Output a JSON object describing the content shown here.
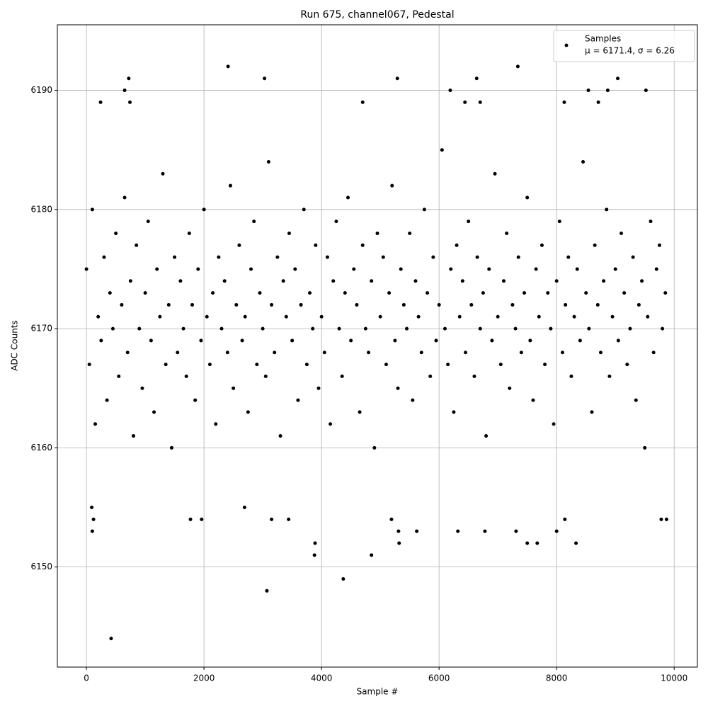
{
  "chart_data": {
    "type": "scatter",
    "title": "Run 675, channel067, Pedestal",
    "xlabel": "Sample #",
    "ylabel": "ADC Counts",
    "xlim": [
      -495,
      10395
    ],
    "ylim": [
      6141.6,
      6195.5
    ],
    "xticks": [
      0,
      2000,
      4000,
      6000,
      8000,
      10000
    ],
    "yticks": [
      6150,
      6160,
      6170,
      6180,
      6190
    ],
    "grid": true,
    "legend": "upper right",
    "series": [
      {
        "name": "Samples",
        "legend_note": "μ = 6171.4, σ = 6.26",
        "color": "#000000",
        "x": [
          0,
          50,
          100,
          150,
          200,
          250,
          300,
          350,
          400,
          450,
          500,
          550,
          600,
          650,
          700,
          750,
          800,
          850,
          900,
          950,
          1000,
          1050,
          1100,
          1150,
          1200,
          1250,
          1300,
          1350,
          1400,
          1450,
          1500,
          1550,
          1600,
          1650,
          1700,
          1750,
          1800,
          1850,
          1900,
          1950,
          2000,
          2050,
          2100,
          2150,
          2200,
          2250,
          2300,
          2350,
          2400,
          2450,
          2500,
          2550,
          2600,
          2650,
          2700,
          2750,
          2800,
          2850,
          2900,
          2950,
          3000,
          3050,
          3100,
          3150,
          3200,
          3250,
          3300,
          3350,
          3400,
          3450,
          3500,
          3550,
          3600,
          3650,
          3700,
          3750,
          3800,
          3850,
          3900,
          3950,
          4000,
          4050,
          4100,
          4150,
          4200,
          4250,
          4300,
          4350,
          4400,
          4450,
          4500,
          4550,
          4600,
          4650,
          4700,
          4750,
          4800,
          4850,
          4900,
          4950,
          5000,
          5050,
          5100,
          5150,
          5200,
          5250,
          5300,
          5350,
          5400,
          5450,
          5500,
          5550,
          5600,
          5650,
          5700,
          5750,
          5800,
          5850,
          5900,
          5950,
          6000,
          6050,
          6100,
          6150,
          6200,
          6250,
          6300,
          6350,
          6400,
          6450,
          6500,
          6550,
          6600,
          6650,
          6700,
          6750,
          6800,
          6850,
          6900,
          6950,
          7000,
          7050,
          7100,
          7150,
          7200,
          7250,
          7300,
          7350,
          7400,
          7450,
          7500,
          7550,
          7600,
          7650,
          7700,
          7750,
          7800,
          7850,
          7900,
          7950,
          8000,
          8050,
          8100,
          8150,
          8200,
          8250,
          8300,
          8350,
          8400,
          8450,
          8500,
          8550,
          8600,
          8650,
          8700,
          8750,
          8800,
          8850,
          8900,
          8950,
          9000,
          9050,
          9100,
          9150,
          9200,
          9250,
          9300,
          9350,
          9400,
          9450,
          9500,
          9550,
          9600,
          9650,
          9700,
          9750,
          9800,
          9850,
          420,
          3070,
          4370,
          3880,
          3890,
          4850,
          5320,
          7500,
          7670,
          8330,
          2410,
          7340,
          720,
          3030,
          5290,
          6640,
          9040,
          650,
          6190,
          8540,
          8870,
          9520,
          240,
          740,
          4700,
          6440,
          6700,
          8130,
          8710,
          6780,
          7310,
          8000,
          6320,
          5620,
          5310,
          100,
          120,
          1960,
          1770,
          3150,
          3440,
          9780,
          9870,
          5190,
          8140,
          90,
          2690
        ],
        "values": [
          6175,
          6167,
          6180,
          6162,
          6171,
          6169,
          6176,
          6164,
          6173,
          6170,
          6178,
          6166,
          6172,
          6181,
          6168,
          6174,
          6161,
          6177,
          6170,
          6165,
          6173,
          6179,
          6169,
          6163,
          6175,
          6171,
          6183,
          6167,
          6172,
          6160,
          6176,
          6168,
          6174,
          6170,
          6166,
          6178,
          6172,
          6164,
          6175,
          6169,
          6180,
          6171,
          6167,
          6173,
          6162,
          6176,
          6170,
          6174,
          6168,
          6182,
          6165,
          6172,
          6177,
          6169,
          6171,
          6163,
          6175,
          6179,
          6167,
          6173,
          6170,
          6166,
          6184,
          6172,
          6168,
          6176,
          6161,
          6174,
          6171,
          6178,
          6169,
          6175,
          6164,
          6172,
          6180,
          6167,
          6173,
          6170,
          6177,
          6165,
          6171,
          6168,
          6176,
          6162,
          6174,
          6179,
          6170,
          6166,
          6173,
          6181,
          6169,
          6175,
          6172,
          6163,
          6177,
          6170,
          6168,
          6174,
          6160,
          6178,
          6171,
          6176,
          6167,
          6173,
          6182,
          6169,
          6165,
          6175,
          6172,
          6170,
          6178,
          6164,
          6174,
          6171,
          6168,
          6180,
          6173,
          6166,
          6176,
          6169,
          6172,
          6185,
          6170,
          6167,
          6175,
          6163,
          6177,
          6171,
          6174,
          6168,
          6179,
          6172,
          6166,
          6176,
          6170,
          6173,
          6161,
          6175,
          6169,
          6183,
          6171,
          6167,
          6174,
          6178,
          6165,
          6172,
          6170,
          6176,
          6168,
          6173,
          6181,
          6169,
          6164,
          6175,
          6171,
          6177,
          6167,
          6173,
          6170,
          6162,
          6174,
          6179,
          6168,
          6172,
          6176,
          6166,
          6171,
          6175,
          6169,
          6184,
          6173,
          6170,
          6163,
          6177,
          6172,
          6168,
          6174,
          6180,
          6166,
          6171,
          6175,
          6169,
          6178,
          6173,
          6167,
          6170,
          6176,
          6164,
          6172,
          6174,
          6160,
          6171,
          6179,
          6168,
          6175,
          6177,
          6170,
          6173,
          6144,
          6148,
          6149,
          6151,
          6152,
          6151,
          6152,
          6152,
          6152,
          6152,
          6192,
          6192,
          6191,
          6191,
          6191,
          6191,
          6191,
          6190,
          6190,
          6190,
          6190,
          6190,
          6189,
          6189,
          6189,
          6189,
          6189,
          6189,
          6189,
          6153,
          6153,
          6153,
          6153,
          6153,
          6153,
          6153,
          6154,
          6154,
          6154,
          6154,
          6154,
          6154,
          6154,
          6154,
          6154,
          6155,
          6155
        ]
      }
    ]
  }
}
